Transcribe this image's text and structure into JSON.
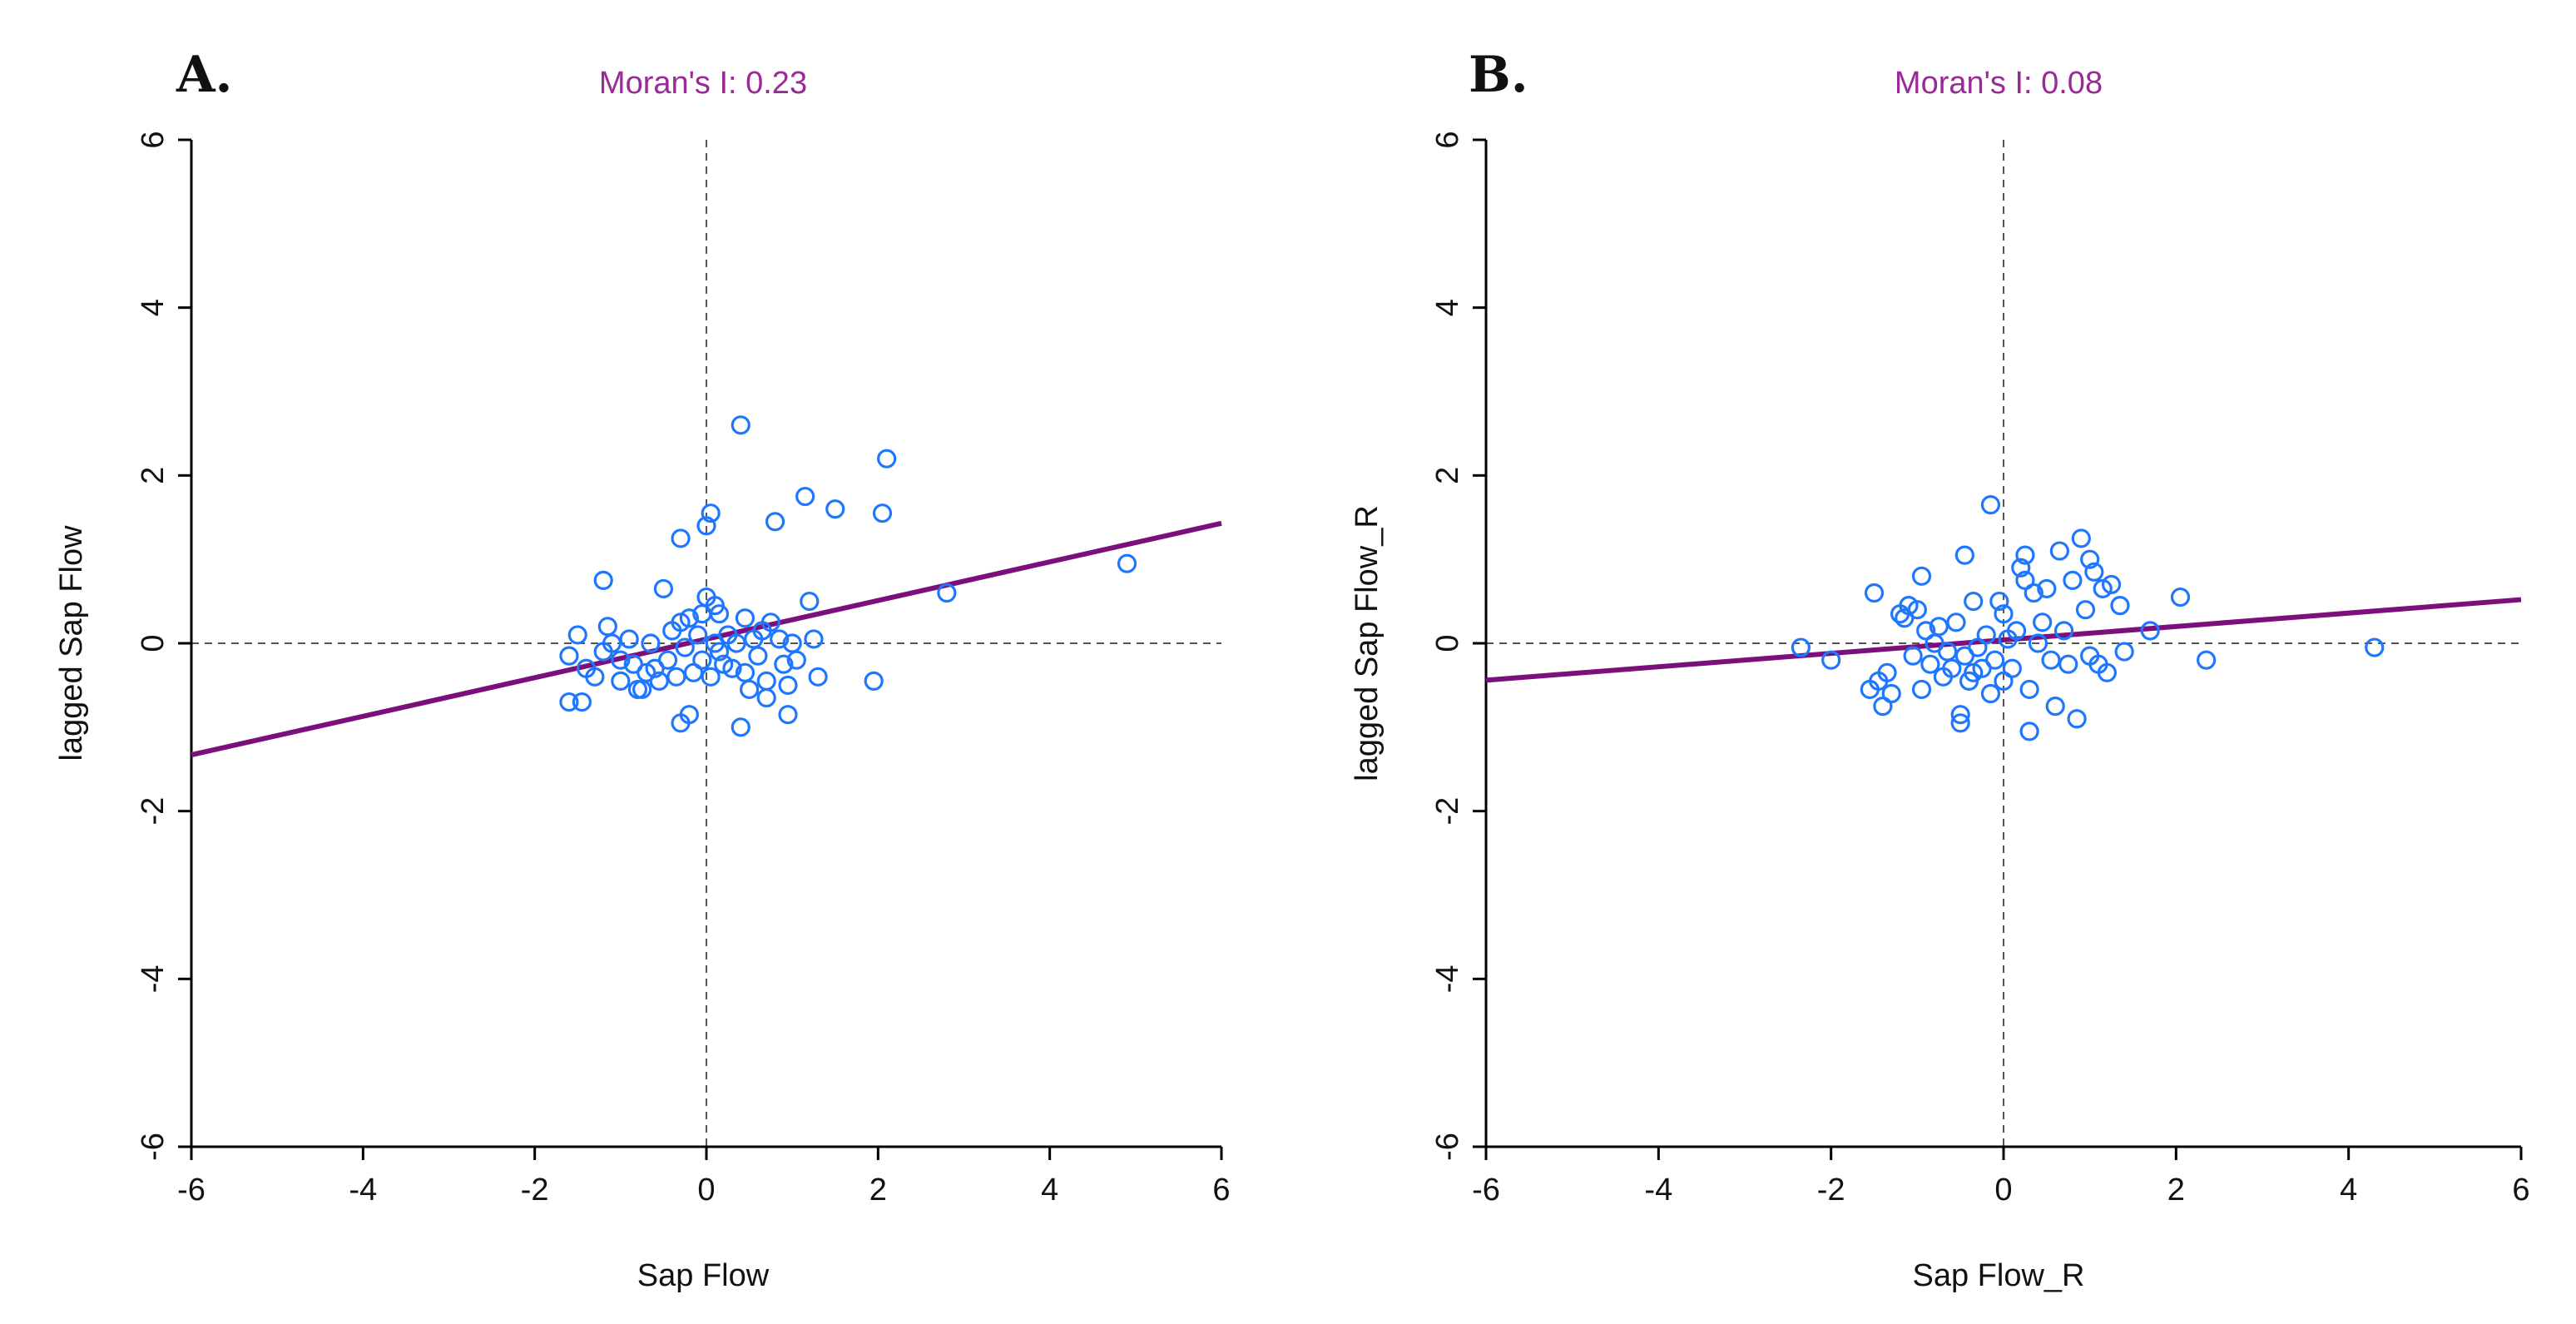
{
  "chart_data": [
    {
      "type": "scatter",
      "panel_label": "A.",
      "title": "Moran's I: 0.23",
      "xlabel": "Sap Flow",
      "ylabel": "lagged Sap Flow",
      "xlim": [
        -6,
        6
      ],
      "ylim": [
        -6,
        6
      ],
      "xticks": [
        -6,
        -4,
        -2,
        0,
        2,
        4,
        6
      ],
      "yticks": [
        -6,
        -4,
        -2,
        0,
        2,
        4,
        6
      ],
      "reference_lines": {
        "x": 0,
        "y": 0
      },
      "regression": {
        "slope": 0.23,
        "intercept": 0.05
      },
      "points": [
        [
          -1.6,
          -0.7
        ],
        [
          -1.45,
          -0.7
        ],
        [
          -1.6,
          -0.15
        ],
        [
          -1.5,
          0.1
        ],
        [
          -1.4,
          -0.3
        ],
        [
          -1.3,
          -0.4
        ],
        [
          -1.2,
          0.75
        ],
        [
          -1.2,
          -0.1
        ],
        [
          -1.15,
          0.2
        ],
        [
          -1.1,
          0.0
        ],
        [
          -1.0,
          -0.2
        ],
        [
          -1.0,
          -0.45
        ],
        [
          -0.9,
          0.05
        ],
        [
          -0.85,
          -0.25
        ],
        [
          -0.8,
          -0.55
        ],
        [
          -0.75,
          -0.55
        ],
        [
          -0.7,
          -0.35
        ],
        [
          -0.65,
          0.0
        ],
        [
          -0.6,
          -0.3
        ],
        [
          -0.55,
          -0.45
        ],
        [
          -0.5,
          0.65
        ],
        [
          -0.45,
          -0.2
        ],
        [
          -0.4,
          0.15
        ],
        [
          -0.35,
          -0.4
        ],
        [
          -0.3,
          -0.95
        ],
        [
          -0.3,
          0.25
        ],
        [
          -0.3,
          1.25
        ],
        [
          -0.25,
          -0.05
        ],
        [
          -0.2,
          -0.85
        ],
        [
          -0.2,
          0.3
        ],
        [
          -0.15,
          -0.35
        ],
        [
          -0.1,
          0.1
        ],
        [
          -0.05,
          0.35
        ],
        [
          -0.05,
          -0.2
        ],
        [
          0.0,
          1.4
        ],
        [
          0.0,
          0.55
        ],
        [
          0.05,
          1.55
        ],
        [
          0.05,
          -0.4
        ],
        [
          0.1,
          0.0
        ],
        [
          0.1,
          0.45
        ],
        [
          0.15,
          -0.1
        ],
        [
          0.15,
          0.35
        ],
        [
          0.2,
          -0.25
        ],
        [
          0.25,
          0.1
        ],
        [
          0.3,
          -0.3
        ],
        [
          0.35,
          0.0
        ],
        [
          0.4,
          2.6
        ],
        [
          0.4,
          -1.0
        ],
        [
          0.45,
          0.3
        ],
        [
          0.45,
          -0.35
        ],
        [
          0.5,
          -0.55
        ],
        [
          0.55,
          0.05
        ],
        [
          0.6,
          -0.15
        ],
        [
          0.65,
          0.15
        ],
        [
          0.7,
          -0.65
        ],
        [
          0.7,
          -0.45
        ],
        [
          0.75,
          0.25
        ],
        [
          0.8,
          1.45
        ],
        [
          0.85,
          0.05
        ],
        [
          0.9,
          -0.25
        ],
        [
          0.95,
          -0.85
        ],
        [
          0.95,
          -0.5
        ],
        [
          1.0,
          0.0
        ],
        [
          1.05,
          -0.2
        ],
        [
          1.15,
          1.75
        ],
        [
          1.2,
          0.5
        ],
        [
          1.25,
          0.05
        ],
        [
          1.3,
          -0.4
        ],
        [
          1.5,
          1.6
        ],
        [
          1.95,
          -0.45
        ],
        [
          2.05,
          1.55
        ],
        [
          2.1,
          2.2
        ],
        [
          2.8,
          0.6
        ],
        [
          4.9,
          0.95
        ]
      ]
    },
    {
      "type": "scatter",
      "panel_label": "B.",
      "title": "Moran's I: 0.08",
      "xlabel": "Sap Flow_R",
      "ylabel": "lagged Sap Flow_R",
      "xlim": [
        -6,
        6
      ],
      "ylim": [
        -6,
        6
      ],
      "xticks": [
        -6,
        -4,
        -2,
        0,
        2,
        4,
        6
      ],
      "yticks": [
        -6,
        -4,
        -2,
        0,
        2,
        4,
        6
      ],
      "reference_lines": {
        "x": 0,
        "y": 0
      },
      "regression": {
        "slope": 0.08,
        "intercept": 0.04
      },
      "points": [
        [
          -2.35,
          -0.05
        ],
        [
          -2.0,
          -0.2
        ],
        [
          -1.55,
          -0.55
        ],
        [
          -1.5,
          0.6
        ],
        [
          -1.45,
          -0.45
        ],
        [
          -1.4,
          -0.75
        ],
        [
          -1.35,
          -0.35
        ],
        [
          -1.3,
          -0.6
        ],
        [
          -1.2,
          0.35
        ],
        [
          -1.15,
          0.3
        ],
        [
          -1.1,
          0.45
        ],
        [
          -1.05,
          -0.15
        ],
        [
          -1.0,
          0.4
        ],
        [
          -0.95,
          0.8
        ],
        [
          -0.95,
          -0.55
        ],
        [
          -0.9,
          0.15
        ],
        [
          -0.85,
          -0.25
        ],
        [
          -0.8,
          0.0
        ],
        [
          -0.75,
          0.2
        ],
        [
          -0.7,
          -0.4
        ],
        [
          -0.65,
          -0.1
        ],
        [
          -0.6,
          -0.3
        ],
        [
          -0.55,
          0.25
        ],
        [
          -0.5,
          -0.85
        ],
        [
          -0.5,
          -0.95
        ],
        [
          -0.45,
          1.05
        ],
        [
          -0.45,
          -0.15
        ],
        [
          -0.4,
          -0.45
        ],
        [
          -0.35,
          0.5
        ],
        [
          -0.35,
          -0.35
        ],
        [
          -0.3,
          -0.05
        ],
        [
          -0.25,
          -0.3
        ],
        [
          -0.2,
          0.1
        ],
        [
          -0.15,
          1.65
        ],
        [
          -0.15,
          -0.6
        ],
        [
          -0.1,
          -0.2
        ],
        [
          -0.05,
          0.5
        ],
        [
          0.0,
          0.35
        ],
        [
          0.0,
          -0.45
        ],
        [
          0.05,
          0.05
        ],
        [
          0.1,
          -0.3
        ],
        [
          0.15,
          0.15
        ],
        [
          0.2,
          0.9
        ],
        [
          0.25,
          0.75
        ],
        [
          0.25,
          1.05
        ],
        [
          0.3,
          -1.05
        ],
        [
          0.3,
          -0.55
        ],
        [
          0.35,
          0.6
        ],
        [
          0.4,
          0.0
        ],
        [
          0.45,
          0.25
        ],
        [
          0.5,
          0.65
        ],
        [
          0.55,
          -0.2
        ],
        [
          0.6,
          -0.75
        ],
        [
          0.65,
          1.1
        ],
        [
          0.7,
          0.15
        ],
        [
          0.75,
          -0.25
        ],
        [
          0.8,
          0.75
        ],
        [
          0.85,
          -0.9
        ],
        [
          0.9,
          1.25
        ],
        [
          0.95,
          0.4
        ],
        [
          1.0,
          -0.15
        ],
        [
          1.0,
          1.0
        ],
        [
          1.05,
          0.85
        ],
        [
          1.1,
          -0.25
        ],
        [
          1.15,
          0.65
        ],
        [
          1.2,
          -0.35
        ],
        [
          1.25,
          0.7
        ],
        [
          1.35,
          0.45
        ],
        [
          1.4,
          -0.1
        ],
        [
          1.7,
          0.15
        ],
        [
          2.05,
          0.55
        ],
        [
          2.35,
          -0.2
        ],
        [
          4.3,
          -0.05
        ]
      ]
    }
  ],
  "colors": {
    "points": "#1f77ff",
    "regression": "#7b0f7b",
    "title": "#9a2a96",
    "reference": "#555555"
  }
}
